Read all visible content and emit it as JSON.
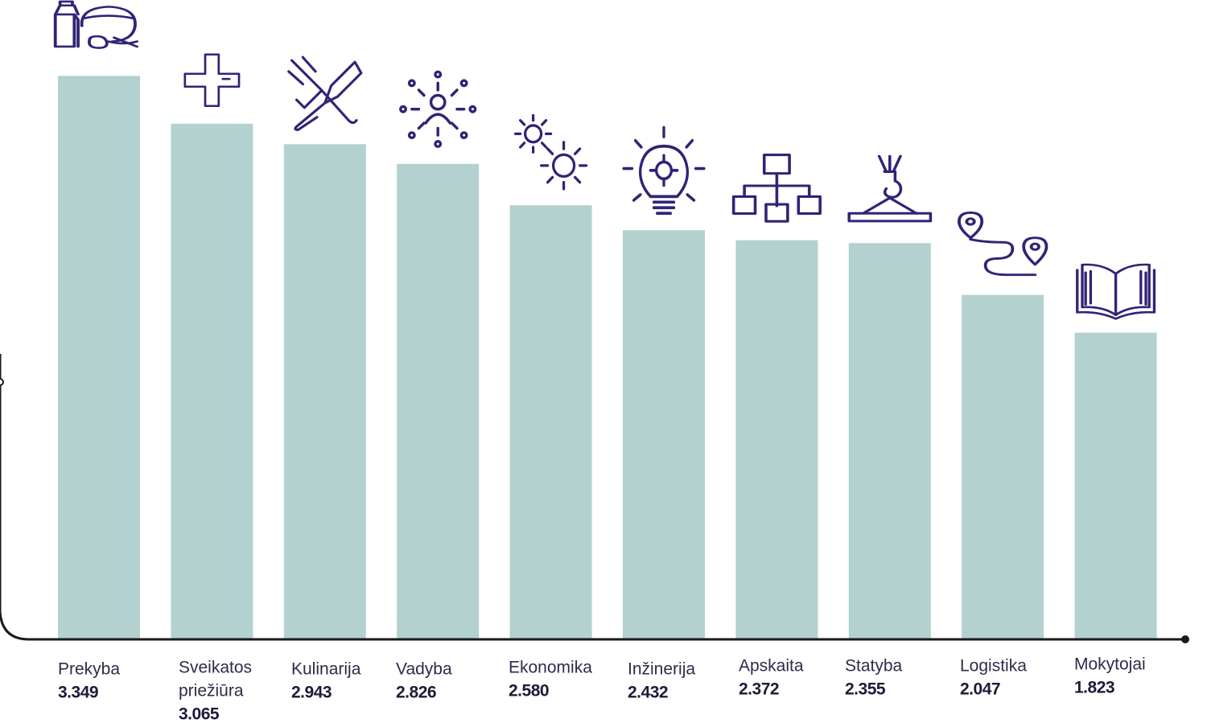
{
  "chart_data": {
    "type": "bar",
    "title": "",
    "xlabel": "",
    "ylabel": "",
    "ylim": [
      0,
      3.8
    ],
    "grid": false,
    "bar_color": "#b3d1cf",
    "axis_color": "#1a1a1a",
    "icon_color": "#2e2576",
    "categories": [
      {
        "label_lines": [
          "Prekyba"
        ],
        "value": 3.349,
        "value_label": "3.349",
        "icon": "grocery-icon"
      },
      {
        "label_lines": [
          "Sveikatos",
          "priežiūra"
        ],
        "value": 3.065,
        "value_label": "3.065",
        "icon": "medical-cross-icon"
      },
      {
        "label_lines": [
          "Kulinarija"
        ],
        "value": 2.943,
        "value_label": "2.943",
        "icon": "fork-knife-icon"
      },
      {
        "label_lines": [
          "Vadyba"
        ],
        "value": 2.826,
        "value_label": "2.826",
        "icon": "network-person-icon"
      },
      {
        "label_lines": [
          "Ekonomika"
        ],
        "value": 2.58,
        "value_label": "2.580",
        "icon": "gears-icon"
      },
      {
        "label_lines": [
          "Inžinerija"
        ],
        "value": 2.432,
        "value_label": "2.432",
        "icon": "lightbulb-gear-icon"
      },
      {
        "label_lines": [
          "Apskaita"
        ],
        "value": 2.372,
        "value_label": "2.372",
        "icon": "org-chart-icon"
      },
      {
        "label_lines": [
          "Statyba"
        ],
        "value": 2.355,
        "value_label": "2.355",
        "icon": "crane-hook-icon"
      },
      {
        "label_lines": [
          "Logistika"
        ],
        "value": 2.047,
        "value_label": "2.047",
        "icon": "route-pins-icon"
      },
      {
        "label_lines": [
          "Mokytojai"
        ],
        "value": 1.823,
        "value_label": "1.823",
        "icon": "open-book-icon"
      }
    ]
  }
}
